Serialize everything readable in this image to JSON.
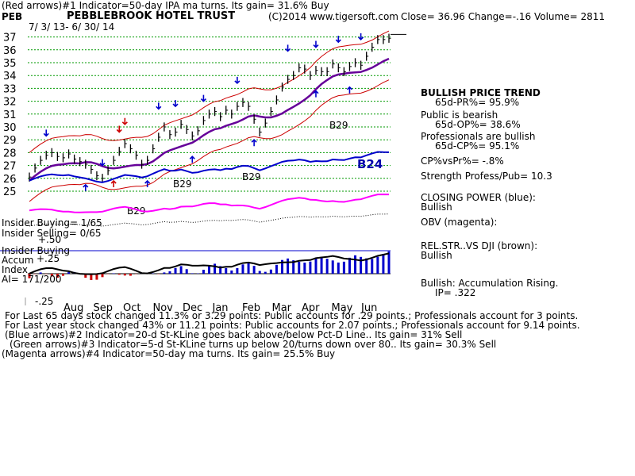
{
  "header": {
    "line1": "(Red arrows)#1 Indicator=50-day IPA ma turns. Its gain= 31.6% Buy",
    "ticker": "PEB",
    "company": "PEBBLEBROOK HOTEL TRUST",
    "copyright": "(C)2014 www.tigersoft.com",
    "quote": "Close=  36.96  Change=-.16 Volume= 2811",
    "dates": "7/ 3/ 13- 6/ 30/ 14"
  },
  "colors": {
    "price": "#000000",
    "bands": "#cc0000",
    "ma": "#660099",
    "closing_power": "#0000cc",
    "obv": "#ff00ff",
    "accum": "#0000cc",
    "accum_neg": "#cc0000",
    "grid": "#009900"
  },
  "chart_data": {
    "type": "line",
    "y_ticks": [
      25,
      26,
      27,
      28,
      29,
      30,
      31,
      32,
      33,
      34,
      35,
      36,
      37
    ],
    "x_labels": [
      "Aug",
      "Sep",
      "Oct",
      "Nov",
      "Dec",
      "Jan",
      "Feb",
      "Mar",
      "Apr",
      "May",
      "Jun"
    ],
    "close_prices": [
      26.1,
      26.8,
      27.4,
      27.8,
      28.0,
      27.7,
      27.6,
      27.9,
      27.5,
      27.3,
      27.1,
      26.7,
      26.2,
      26.0,
      26.6,
      27.4,
      28.1,
      28.7,
      28.3,
      27.8,
      27.1,
      27.4,
      28.3,
      29.2,
      30.0,
      29.4,
      29.6,
      30.2,
      29.8,
      29.3,
      29.7,
      30.5,
      31.0,
      31.2,
      30.8,
      31.3,
      31.0,
      31.6,
      31.9,
      31.6,
      30.6,
      29.6,
      30.3,
      31.2,
      32.1,
      33.1,
      33.7,
      34.0,
      34.6,
      34.5,
      34.0,
      34.4,
      34.3,
      34.3,
      34.9,
      34.6,
      34.3,
      34.7,
      35.0,
      34.8,
      35.5,
      36.2,
      36.8,
      36.8,
      36.9
    ],
    "accum_index_value": "AI= 171/200",
    "scale_labels": {
      "accum_top": "+.25",
      "accum_mid": "+.50",
      "accum_bot": "-.25"
    },
    "annotations": [
      "B29",
      "B29",
      "B29",
      "B29",
      "B24"
    ]
  },
  "left_labels": {
    "insider_buying_1": "Insider Buying= 1/65",
    "insider_selling": "Insider Selling= 0/65",
    "insider_buying_2": "Insider Buying",
    "accum": "Accum",
    "index": "Index"
  },
  "right_panel": {
    "trend_title": "BULLISH PRICE TREND",
    "pr": "65d-PR%= 95.9%",
    "public": "Public is bearish",
    "op": "65d-OP%= 38.6%",
    "pros": "Professionals are bullish",
    "cp": "65d-CP%= 95.1%",
    "cpvspr": "CP%vsPr%= -.8%",
    "strength": "Strength Profess/Pub= 10.3",
    "closing_power_title": "CLOSING POWER (blue):",
    "closing_power_status": "Bullish",
    "obv": "OBV (magenta):",
    "relstr_title": "REL.STR..VS DJI (brown):",
    "relstr_status": "Bullish",
    "accum_status": "Bullish: Accumulation Rising.",
    "ip": "IP=  .322"
  },
  "footer": {
    "line1": "For Last 65 days stock changed  11.3% or  3.29 points:  Public accounts for  .29 points.;  Professionals account for  3 points.",
    "line2": "For Last year stock changed  43% or  11.21 points:  Public accounts for  2.07 points.;  Professionals account for  9.14 points.",
    "line3": "(Blue arrows)#2 Indicator=20-d St-KLine goes back above/below Pct-D Line.. Its gain= 31% Sell",
    "line4": "(Green arrows)#3 Indicator=5-d St-KLine turns up below 20/turns down over 80.. Its gain= 30.3% Sell",
    "line5": "(Magenta arrows)#4 Indicator=50-day ma turns. Its gain= 25.5% Buy"
  }
}
